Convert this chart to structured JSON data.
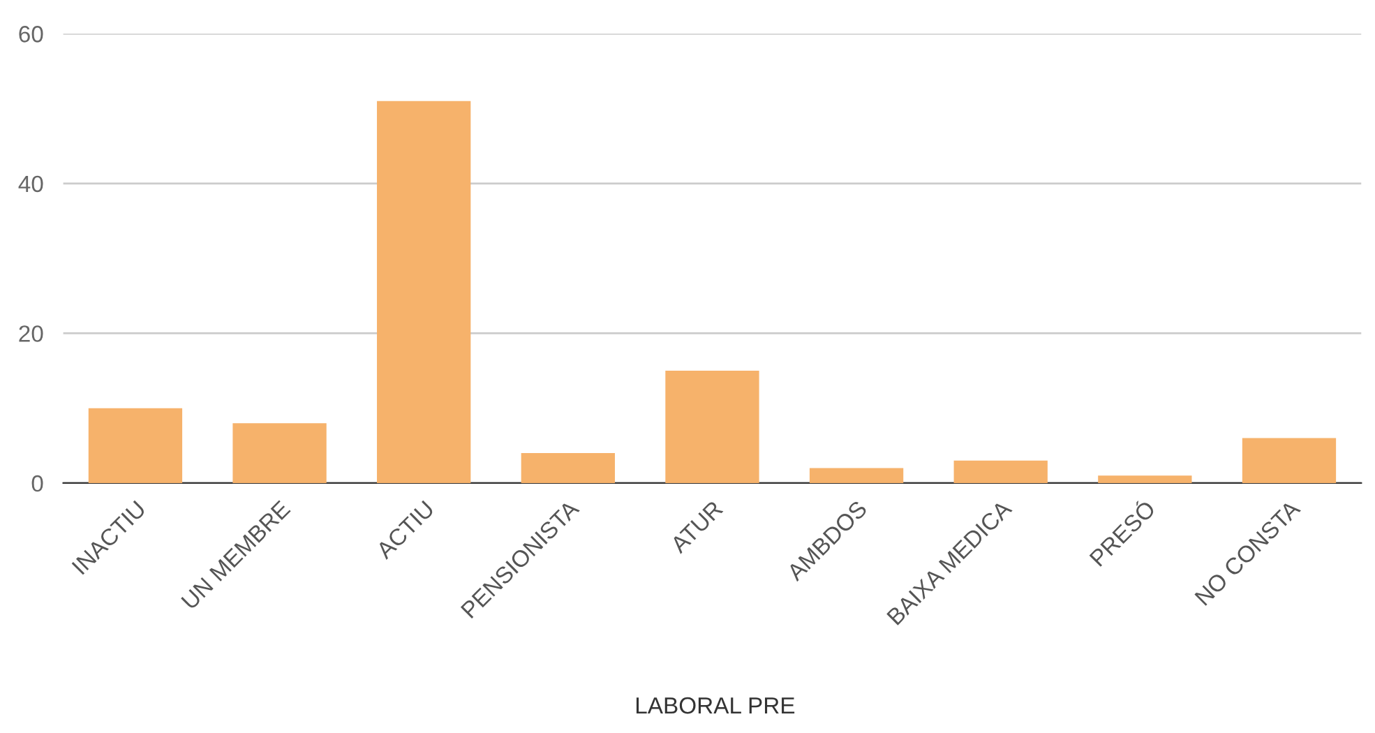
{
  "chart_data": {
    "type": "bar",
    "xlabel": "LABORAL PRE",
    "categories": [
      "INACTIU",
      "UN MEMBRE",
      "ACTIU",
      "PENSIONISTA",
      "ATUR",
      "AMBDOS",
      "BAIXA MEDICA",
      "PRESÓ",
      "NO CONSTA"
    ],
    "values": [
      10,
      8,
      51,
      4,
      15,
      2,
      3,
      1,
      6
    ],
    "color": "#f6b26b",
    "ylim": [
      0,
      60
    ],
    "yticks": [
      0,
      20,
      40,
      60
    ],
    "grid": "y"
  }
}
